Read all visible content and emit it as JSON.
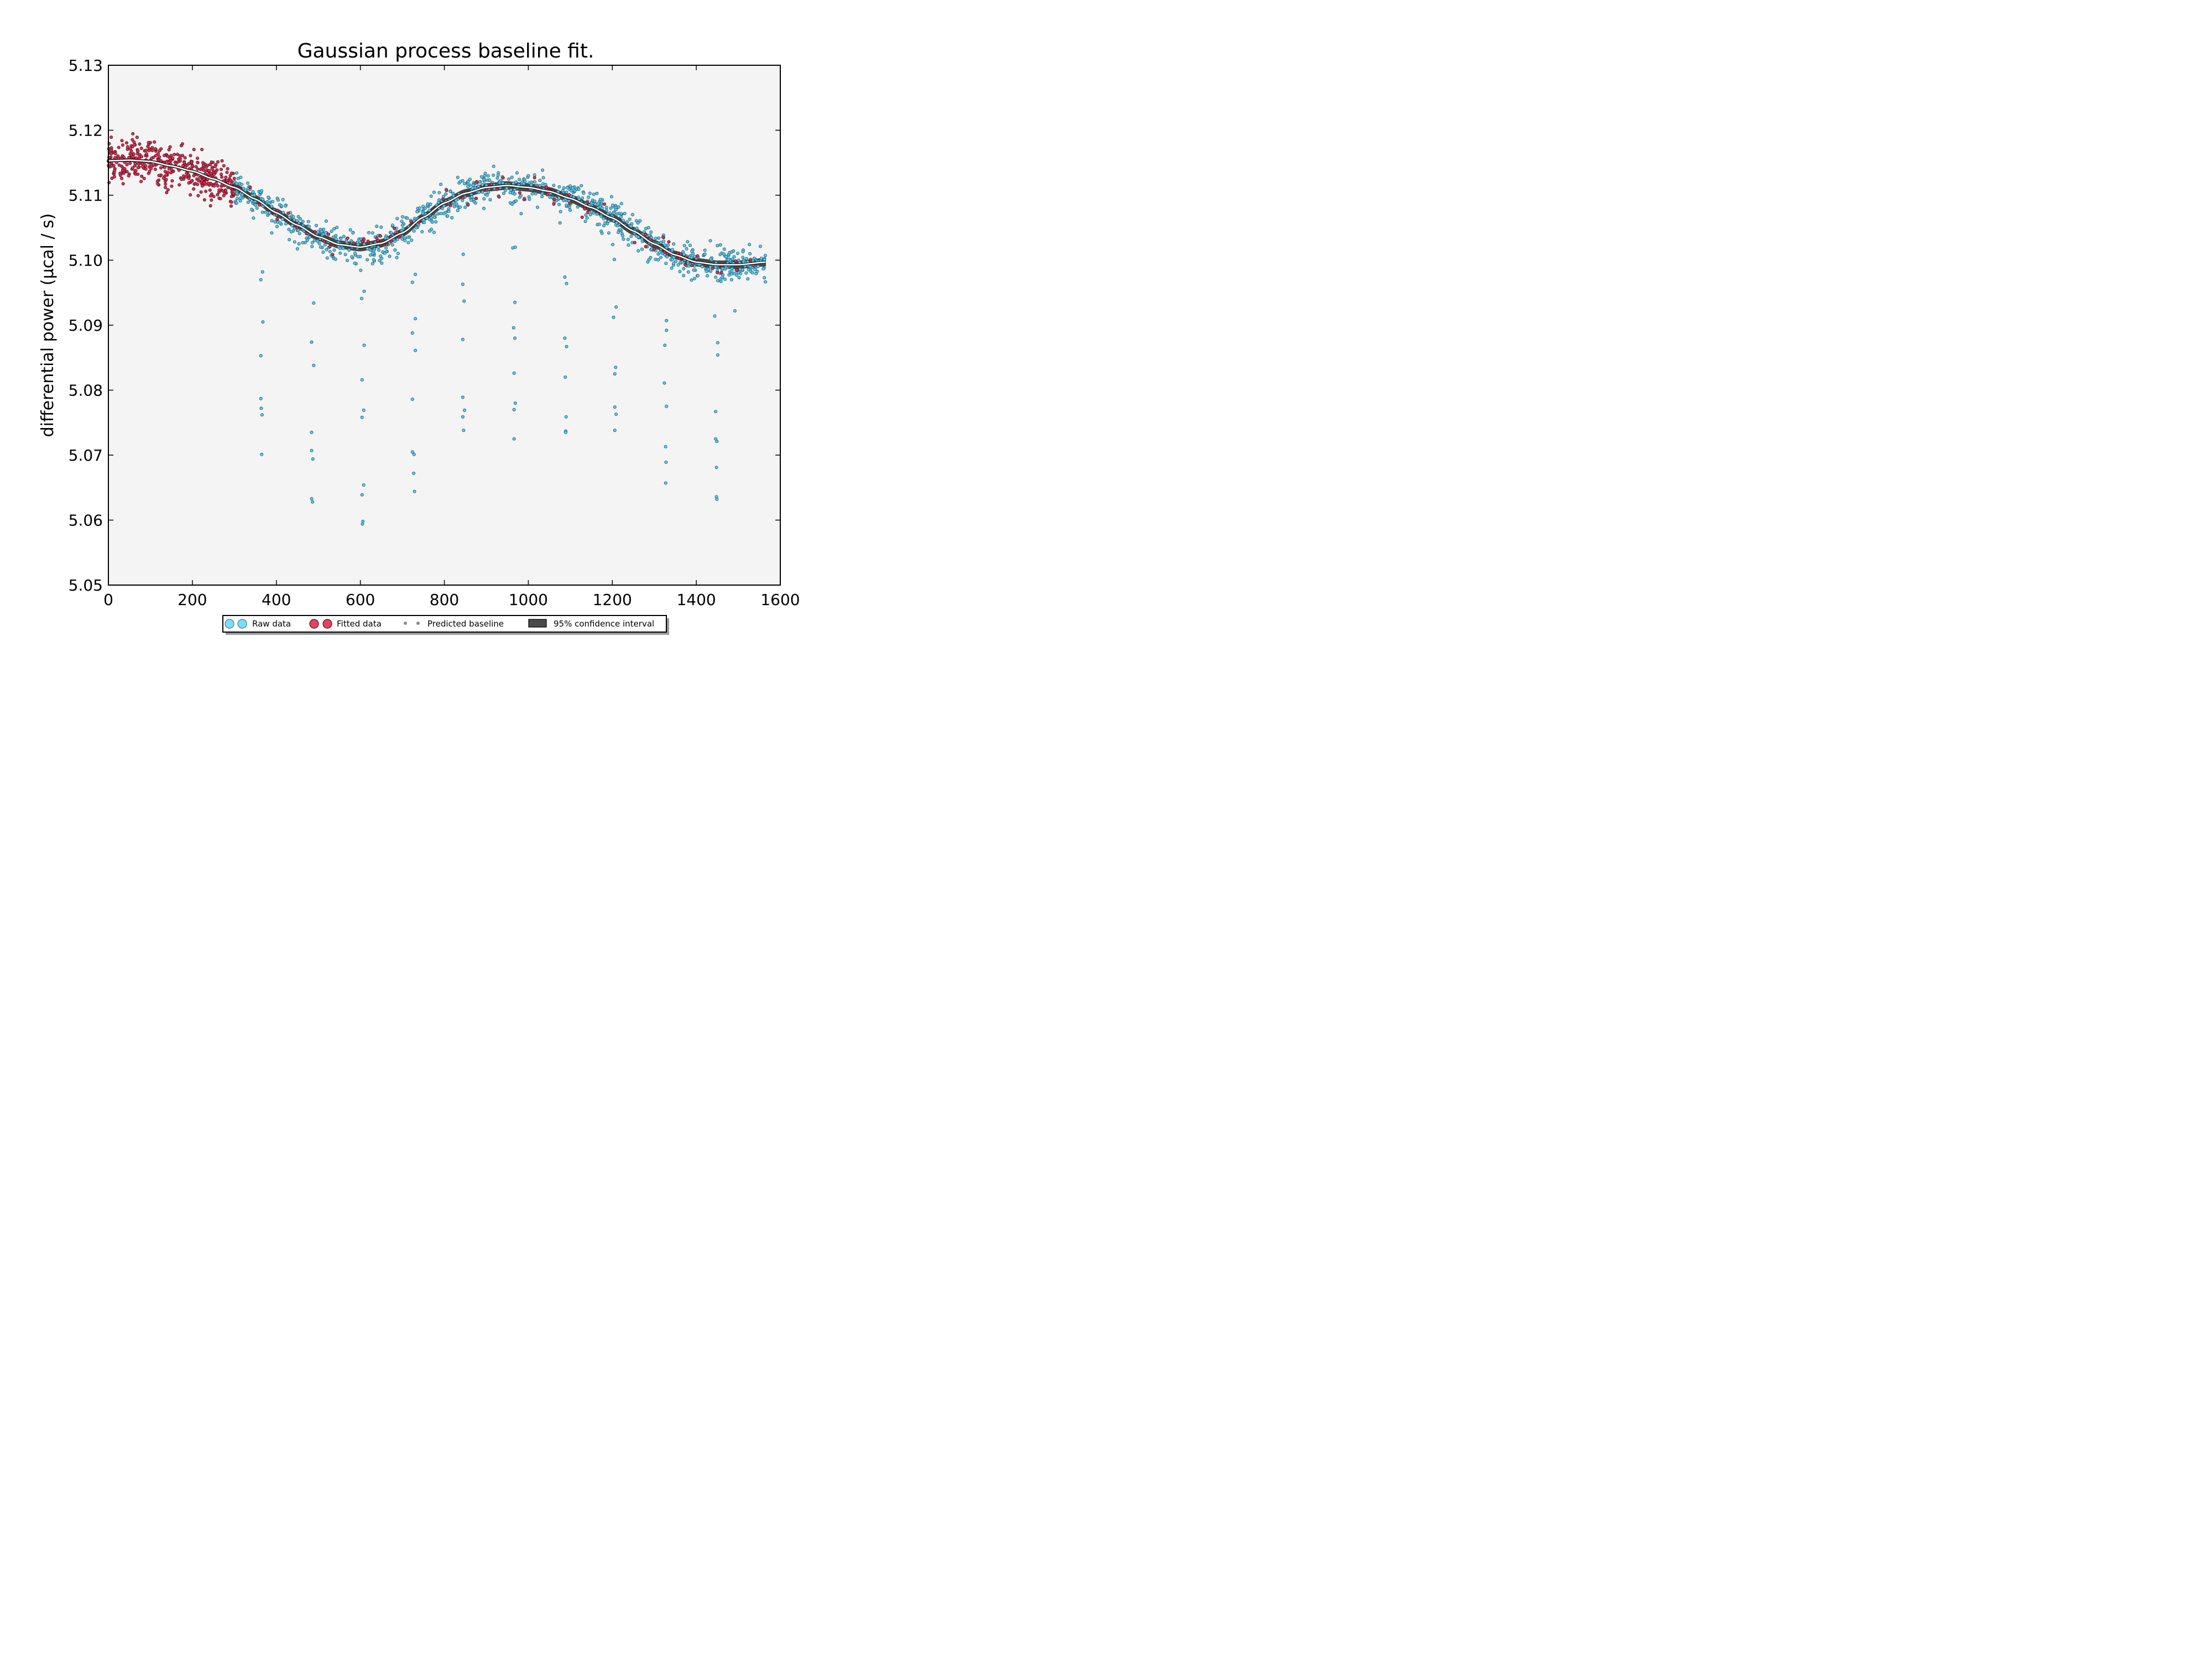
{
  "chart_data": {
    "type": "scatter",
    "title": "Gaussian process baseline fit.",
    "xlabel": "",
    "ylabel": "differential power (μcal / s)",
    "xlim": [
      0,
      1600
    ],
    "ylim": [
      5.05,
      5.13
    ],
    "xticks": [
      0,
      200,
      400,
      600,
      800,
      1000,
      1200,
      1400,
      1600
    ],
    "yticks": [
      5.05,
      5.06,
      5.07,
      5.08,
      5.09,
      5.1,
      5.11,
      5.12,
      5.13
    ],
    "grid": false,
    "legend_position": "bottom-center",
    "background": "#f4f4f4",
    "colors": {
      "raw": "#5bc8e8",
      "fitted": "#dd3355",
      "baseline": "#ffffff",
      "confidence": "#4a4a4a"
    },
    "series": [
      {
        "name": "Raw data",
        "kind": "scatter",
        "outliers": [
          [
            363,
            5.097
          ],
          [
            367,
            5.0982
          ],
          [
            368,
            5.0905
          ],
          [
            363,
            5.0853
          ],
          [
            363,
            5.0787
          ],
          [
            364,
            5.0772
          ],
          [
            366,
            5.0762
          ],
          [
            365,
            5.0701
          ],
          [
            489,
            5.0934
          ],
          [
            484,
            5.0874
          ],
          [
            489,
            5.0838
          ],
          [
            484,
            5.0735
          ],
          [
            484,
            5.0707
          ],
          [
            487,
            5.0694
          ],
          [
            484,
            5.0633
          ],
          [
            486,
            5.0628
          ],
          [
            609,
            5.0952
          ],
          [
            603,
            5.0941
          ],
          [
            609,
            5.0869
          ],
          [
            604,
            5.0816
          ],
          [
            608,
            5.0769
          ],
          [
            604,
            5.0758
          ],
          [
            608,
            5.0654
          ],
          [
            604,
            5.0639
          ],
          [
            606,
            5.0598
          ],
          [
            605,
            5.0594
          ],
          [
            724,
            5.0966
          ],
          [
            731,
            5.0978
          ],
          [
            731,
            5.091
          ],
          [
            724,
            5.0888
          ],
          [
            731,
            5.0861
          ],
          [
            724,
            5.0786
          ],
          [
            724,
            5.0705
          ],
          [
            728,
            5.0701
          ],
          [
            727,
            5.0672
          ],
          [
            729,
            5.0644
          ],
          [
            845,
            5.1009
          ],
          [
            844,
            5.0963
          ],
          [
            847,
            5.0937
          ],
          [
            844,
            5.0878
          ],
          [
            844,
            5.0789
          ],
          [
            848,
            5.0769
          ],
          [
            844,
            5.0759
          ],
          [
            846,
            5.0738
          ],
          [
            963,
            5.1019
          ],
          [
            969,
            5.102
          ],
          [
            968,
            5.0935
          ],
          [
            965,
            5.0896
          ],
          [
            968,
            5.088
          ],
          [
            966,
            5.0826
          ],
          [
            969,
            5.078
          ],
          [
            966,
            5.077
          ],
          [
            966,
            5.0725
          ],
          [
            1087,
            5.0974
          ],
          [
            1091,
            5.0964
          ],
          [
            1087,
            5.088
          ],
          [
            1091,
            5.0867
          ],
          [
            1088,
            5.082
          ],
          [
            1090,
            5.0759
          ],
          [
            1089,
            5.0737
          ],
          [
            1089,
            5.0735
          ],
          [
            1205,
            5.1001
          ],
          [
            1201,
            5.1024
          ],
          [
            1209,
            5.0928
          ],
          [
            1203,
            5.0912
          ],
          [
            1208,
            5.0835
          ],
          [
            1206,
            5.0825
          ],
          [
            1206,
            5.0774
          ],
          [
            1209,
            5.0763
          ],
          [
            1206,
            5.0738
          ],
          [
            1329,
            5.0907
          ],
          [
            1329,
            5.0892
          ],
          [
            1325,
            5.0869
          ],
          [
            1324,
            5.0811
          ],
          [
            1329,
            5.0775
          ],
          [
            1327,
            5.0713
          ],
          [
            1328,
            5.0689
          ],
          [
            1327,
            5.0657
          ],
          [
            1451,
            5.0873
          ],
          [
            1444,
            5.0914
          ],
          [
            1451,
            5.0854
          ],
          [
            1446,
            5.0767
          ],
          [
            1446,
            5.0725
          ],
          [
            1449,
            5.0721
          ],
          [
            1448,
            5.0681
          ],
          [
            1448,
            5.0636
          ],
          [
            1449,
            5.0632
          ],
          [
            1492,
            5.0922
          ]
        ]
      },
      {
        "name": "Fitted data",
        "kind": "scatter",
        "x_range": [
          0,
          1565
        ]
      },
      {
        "name": "Predicted baseline",
        "kind": "line",
        "x": [
          0,
          50,
          100,
          150,
          200,
          250,
          300,
          350,
          400,
          450,
          500,
          550,
          600,
          650,
          700,
          750,
          800,
          850,
          900,
          950,
          1000,
          1050,
          1100,
          1150,
          1200,
          1250,
          1300,
          1350,
          1400,
          1450,
          1500,
          1565
        ],
        "y": [
          5.1153,
          5.1154,
          5.1152,
          5.1145,
          5.1137,
          5.1125,
          5.1112,
          5.1094,
          5.1073,
          5.1054,
          5.1036,
          5.1024,
          5.102,
          5.1026,
          5.1042,
          5.1066,
          5.1088,
          5.1103,
          5.1112,
          5.1115,
          5.1112,
          5.1106,
          5.1095,
          5.1081,
          5.1065,
          5.1045,
          5.1025,
          5.1008,
          5.0997,
          5.0993,
          5.0993,
          5.0997
        ]
      },
      {
        "name": "95% confidence interval",
        "kind": "band",
        "half_width": 0.0006
      }
    ]
  }
}
